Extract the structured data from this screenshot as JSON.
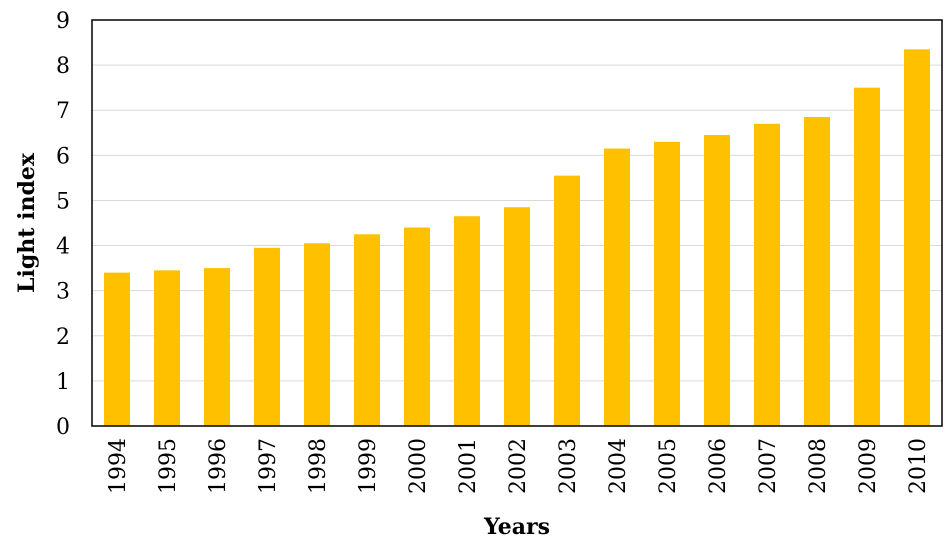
{
  "chart_data": {
    "type": "bar",
    "title": "",
    "xlabel": "Years",
    "ylabel": "Light index",
    "ylim": [
      0,
      9
    ],
    "yticks": [
      "0",
      "1",
      "2",
      "3",
      "4",
      "5",
      "6",
      "7",
      "8",
      "9"
    ],
    "grid": true,
    "bar_color": "#FFC000",
    "categories": [
      "1994",
      "1995",
      "1996",
      "1997",
      "1998",
      "1999",
      "2000",
      "2001",
      "2002",
      "2003",
      "2004",
      "2005",
      "2006",
      "2007",
      "2008",
      "2009",
      "2010"
    ],
    "values": [
      3.4,
      3.45,
      3.5,
      3.95,
      4.05,
      4.25,
      4.4,
      4.65,
      4.85,
      5.55,
      6.15,
      6.3,
      6.45,
      6.7,
      6.85,
      7.5,
      8.35
    ]
  }
}
